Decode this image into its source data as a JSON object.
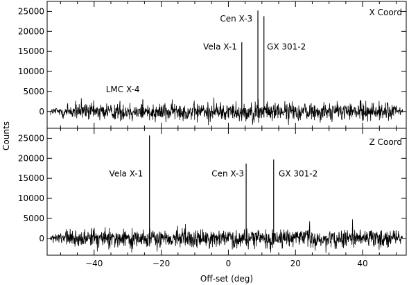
{
  "chart_data": [
    {
      "type": "line",
      "panel": "top",
      "corner_label": "X Coord",
      "x_range": [
        -54,
        53
      ],
      "ylim": [
        -4200,
        27500
      ],
      "yticks": [
        0,
        5000,
        10000,
        15000,
        20000,
        25000
      ],
      "ytick_labels": [
        "0",
        "5000",
        "10000",
        "15000",
        "20000",
        "25000"
      ],
      "noise_amplitude": 2500,
      "peaks": [
        {
          "x": -25.5,
          "y": 3000
        },
        {
          "x": 4.0,
          "y": 17300
        },
        {
          "x": 8.8,
          "y": 25200
        },
        {
          "x": 10.6,
          "y": 23800
        }
      ],
      "annotations": [
        {
          "text": "LMC X-4",
          "x": -36.5,
          "y": 4800,
          "anchor": "start"
        },
        {
          "text": "Vela X-1",
          "x": -7.5,
          "y": 15500,
          "anchor": "start"
        },
        {
          "text": "Cen X-3",
          "x": -2.5,
          "y": 22500,
          "anchor": "start"
        },
        {
          "text": "GX 301-2",
          "x": 11.5,
          "y": 15500,
          "anchor": "start"
        }
      ]
    },
    {
      "type": "line",
      "panel": "bottom",
      "corner_label": "Z Coord",
      "x_range": [
        -54,
        53
      ],
      "ylim": [
        -4200,
        27500
      ],
      "yticks": [
        0,
        5000,
        10000,
        15000,
        20000,
        25000
      ],
      "ytick_labels": [
        "0",
        "5000",
        "10000",
        "15000",
        "20000",
        "25000"
      ],
      "xticks": [
        -40,
        -20,
        0,
        20,
        40
      ],
      "xtick_labels": [
        "−40",
        "−20",
        "0",
        "20",
        "40"
      ],
      "noise_amplitude": 2500,
      "peaks": [
        {
          "x": -23.5,
          "y": 25700
        },
        {
          "x": 5.3,
          "y": 18700
        },
        {
          "x": 13.5,
          "y": 19700
        }
      ],
      "annotations": [
        {
          "text": "Vela X-1",
          "x": -35.5,
          "y": 15500,
          "anchor": "start"
        },
        {
          "text": "Cen X-3",
          "x": -5.0,
          "y": 15500,
          "anchor": "start"
        },
        {
          "text": "GX 301-2",
          "x": 15.0,
          "y": 15500,
          "anchor": "start"
        }
      ]
    }
  ],
  "axes": {
    "xlabel": "Off-set (deg)",
    "ylabel": "Counts"
  }
}
